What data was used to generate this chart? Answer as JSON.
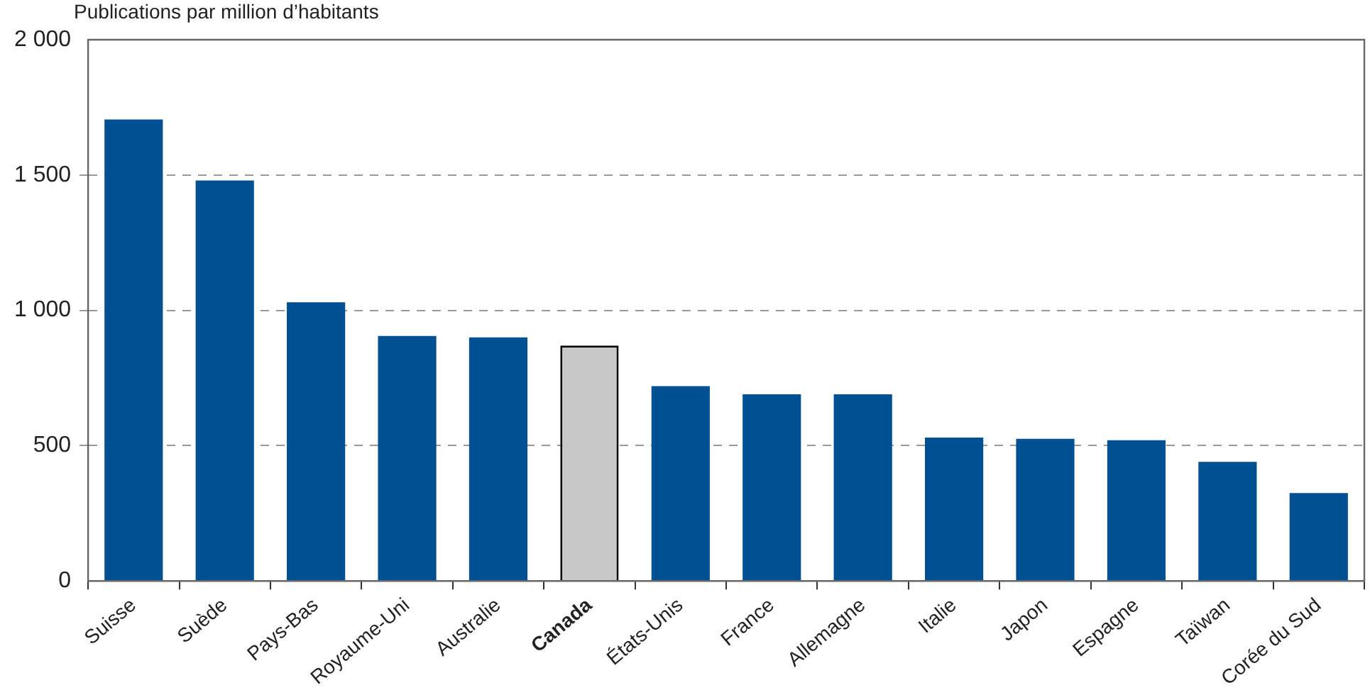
{
  "chart_data": {
    "type": "bar",
    "ylabel": "Publications par million d’habitants",
    "categories": [
      "Suisse",
      "Suède",
      "Pays-Bas",
      "Royaume-Uni",
      "Australie",
      "Canada",
      "États-Unis",
      "France",
      "Allemagne",
      "Italie",
      "Japon",
      "Espagne",
      "Taïwan",
      "Corée du Sud"
    ],
    "values": [
      1705,
      1480,
      1030,
      905,
      900,
      870,
      720,
      690,
      690,
      530,
      525,
      520,
      440,
      325
    ],
    "colors": [
      "#005193",
      "#005193",
      "#005193",
      "#005193",
      "#005193",
      "#c8c8c8",
      "#005193",
      "#005193",
      "#005193",
      "#005193",
      "#005193",
      "#005193",
      "#005193",
      "#005193"
    ],
    "ylim": [
      0,
      2000
    ],
    "yticks": [
      0,
      500,
      {
        "value": 1000,
        "label": "1 000"
      },
      {
        "value": 1500,
        "label": "1 500"
      },
      {
        "value": 2000,
        "label": "2 000"
      }
    ],
    "grid": "y",
    "legend": false
  }
}
